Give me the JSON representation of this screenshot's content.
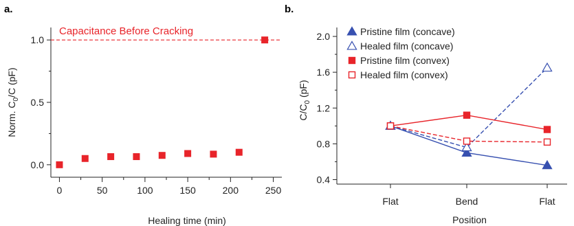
{
  "chart_data": [
    {
      "panel": "a.",
      "type": "scatter",
      "title": "",
      "xlabel": "Healing time (min)",
      "ylabel_prefix": "Norm. C",
      "ylabel_sub": "0",
      "ylabel_suffix": "/C (pF)",
      "xlim": [
        -10,
        260
      ],
      "ylim": [
        -0.1,
        1.1
      ],
      "xticks": [
        0,
        50,
        100,
        150,
        200,
        250
      ],
      "xtick_labels": [
        "0",
        "50",
        "100",
        "150",
        "200",
        "250"
      ],
      "x_minor_step": 25,
      "yticks": [
        0.0,
        0.5,
        1.0
      ],
      "ytick_labels": [
        "0.0",
        "0.5",
        "1.0"
      ],
      "marker_color": "#e8242a",
      "series": [
        {
          "x": [
            0,
            30,
            60,
            90,
            120,
            150,
            180,
            210,
            240
          ],
          "y": [
            0.0,
            0.05,
            0.065,
            0.065,
            0.075,
            0.09,
            0.085,
            0.1,
            1.0
          ]
        }
      ],
      "reference_line": {
        "y": 1.0,
        "label": "Capacitance Before Cracking",
        "color": "#e8242a",
        "style": "dashed"
      }
    },
    {
      "panel": "b.",
      "type": "line",
      "title": "",
      "xlabel": "Position",
      "ylabel_prefix": "C/C",
      "ylabel_sub": "0",
      "ylabel_suffix": " (pF)",
      "categories": [
        "Flat",
        "Bend",
        "Flat"
      ],
      "ylim": [
        0.35,
        2.1
      ],
      "yticks": [
        0.4,
        0.8,
        1.2,
        1.6,
        2.0
      ],
      "ytick_labels": [
        "0.4",
        "0.8",
        "1.2",
        "1.6",
        "2.0"
      ],
      "legend_position": "top-left",
      "series": [
        {
          "name": "Pristine film (concave)",
          "values": [
            1.0,
            0.7,
            0.56
          ],
          "color": "#3750b0",
          "marker": "triangle-filled",
          "line": "solid"
        },
        {
          "name": "Healed film (concave)",
          "values": [
            1.0,
            0.76,
            1.65
          ],
          "color": "#3750b0",
          "marker": "triangle-open",
          "line": "dashed"
        },
        {
          "name": "Pristine film (convex)",
          "values": [
            1.0,
            1.12,
            0.96
          ],
          "color": "#e8242a",
          "marker": "square-filled",
          "line": "solid"
        },
        {
          "name": "Healed film (convex)",
          "values": [
            1.0,
            0.83,
            0.82
          ],
          "color": "#e8242a",
          "marker": "square-open",
          "line": "dashed"
        }
      ]
    }
  ]
}
